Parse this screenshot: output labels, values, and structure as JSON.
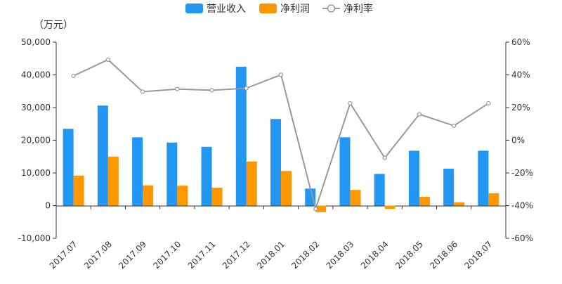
{
  "chart_data": {
    "type": "bar",
    "unit_label": "（万元）",
    "categories": [
      "2017.07",
      "2017.08",
      "2017.09",
      "2017.10",
      "2017.11",
      "2017.12",
      "2018.01",
      "2018.02",
      "2018.03",
      "2018.04",
      "2018.05",
      "2018.06",
      "2018.07"
    ],
    "series": [
      {
        "name": "营业收入",
        "type": "bar",
        "axis": "left",
        "color": "#2196F3",
        "values": [
          23500,
          30600,
          20900,
          19300,
          18000,
          42500,
          26500,
          5200,
          20900,
          9700,
          16800,
          11300,
          16800
        ]
      },
      {
        "name": "净利润",
        "type": "bar",
        "axis": "left",
        "color": "#FF9800",
        "values": [
          9200,
          15000,
          6200,
          6100,
          5500,
          13500,
          10600,
          -2000,
          4800,
          -1000,
          2700,
          1000,
          3800
        ]
      },
      {
        "name": "净利率",
        "type": "line",
        "axis": "right",
        "color": "#999999",
        "values": [
          39.4,
          49.3,
          29.7,
          31.3,
          30.6,
          31.8,
          40.1,
          -42.0,
          22.6,
          -10.8,
          15.9,
          8.9,
          22.6
        ]
      }
    ],
    "y_left": {
      "min": -10000,
      "max": 50000,
      "ticks": [
        "-10,000",
        "0",
        "10,000",
        "20,000",
        "30,000",
        "40,000",
        "50,000"
      ]
    },
    "y_right": {
      "min": -60,
      "max": 60,
      "ticks": [
        "-60%",
        "-40%",
        "-20%",
        "0%",
        "20%",
        "40%",
        "60%"
      ]
    },
    "legend_position": "top-center",
    "grid": false
  }
}
